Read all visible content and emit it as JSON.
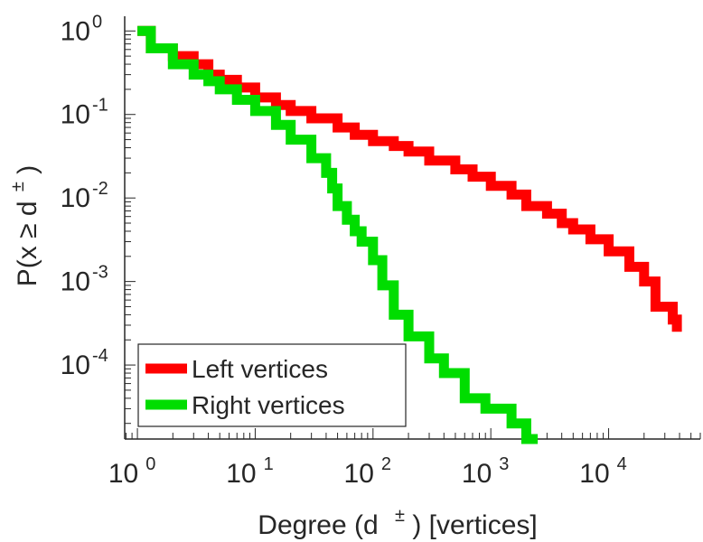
{
  "chart_data": {
    "type": "line",
    "xlabel": "Degree (d",
    "xlabel_sup": "±",
    "xlabel_tail": ") [vertices]",
    "ylabel": "P(x ≥ d",
    "ylabel_sup": "±",
    "ylabel_tail": ")",
    "x_scale": "log",
    "y_scale": "log",
    "xlim": [
      0.78,
      60000
    ],
    "ylim": [
      1.3e-05,
      1.5
    ],
    "grid": false,
    "legend_position": "bottom-left",
    "x_ticks": [
      {
        "value": 1,
        "base": "10",
        "exp": "0"
      },
      {
        "value": 10,
        "base": "10",
        "exp": "1"
      },
      {
        "value": 100,
        "base": "10",
        "exp": "2"
      },
      {
        "value": 1000,
        "base": "10",
        "exp": "3"
      },
      {
        "value": 10000,
        "base": "10",
        "exp": "4"
      }
    ],
    "y_ticks": [
      {
        "value": 1,
        "base": "10",
        "exp": "0"
      },
      {
        "value": 0.1,
        "base": "10",
        "exp": "-1"
      },
      {
        "value": 0.01,
        "base": "10",
        "exp": "-2"
      },
      {
        "value": 0.001,
        "base": "10",
        "exp": "-3"
      },
      {
        "value": 0.0001,
        "base": "10",
        "exp": "-4"
      }
    ],
    "series": [
      {
        "name": "Left vertices",
        "color": "#ff0000",
        "x": [
          1,
          1.3,
          2,
          3,
          4,
          5,
          7,
          10,
          15,
          20,
          30,
          50,
          70,
          100,
          150,
          200,
          300,
          500,
          700,
          1000,
          1500,
          2000,
          3000,
          4000,
          5000,
          7000,
          10000,
          15000,
          20000,
          25000,
          35000,
          38000
        ],
        "y": [
          1,
          0.62,
          0.5,
          0.4,
          0.3,
          0.26,
          0.21,
          0.16,
          0.13,
          0.11,
          0.09,
          0.07,
          0.057,
          0.048,
          0.042,
          0.036,
          0.028,
          0.022,
          0.018,
          0.014,
          0.011,
          0.008,
          0.0065,
          0.005,
          0.0042,
          0.0032,
          0.0023,
          0.0015,
          0.001,
          0.0005,
          0.00035,
          0.00025
        ]
      },
      {
        "name": "Right vertices",
        "color": "#00dd00",
        "x": [
          1,
          1.3,
          2,
          3,
          4,
          5,
          7,
          10,
          15,
          20,
          30,
          40,
          45,
          50,
          60,
          70,
          80,
          100,
          120,
          150,
          200,
          300,
          400,
          600,
          900,
          1500,
          2000,
          2500
        ],
        "y": [
          1,
          0.62,
          0.4,
          0.3,
          0.25,
          0.2,
          0.15,
          0.11,
          0.075,
          0.05,
          0.03,
          0.02,
          0.013,
          0.008,
          0.0055,
          0.004,
          0.003,
          0.0018,
          0.0009,
          0.0004,
          0.00022,
          0.00012,
          8e-05,
          4e-05,
          3e-05,
          2e-05,
          1.3e-05,
          1.3e-05
        ]
      }
    ]
  }
}
